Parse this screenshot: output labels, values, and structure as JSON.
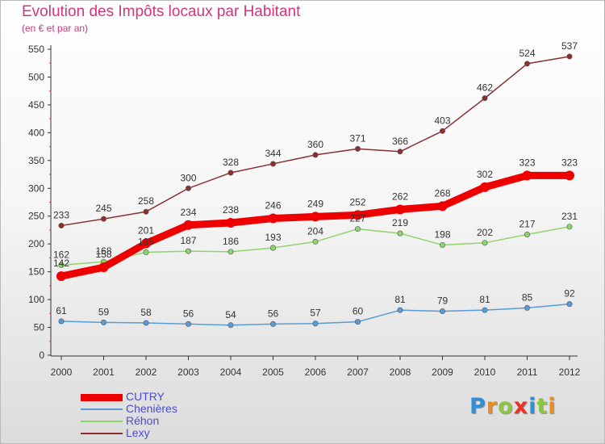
{
  "chart_data": {
    "type": "line",
    "title": "Evolution des Impôts locaux par Habitant",
    "subtitle": "(en € et par an)",
    "x": [
      "2000",
      "2001",
      "2002",
      "2003",
      "2004",
      "2005",
      "2006",
      "2007",
      "2008",
      "2009",
      "2010",
      "2011",
      "2012"
    ],
    "y_ticks": [
      0,
      50,
      100,
      150,
      200,
      250,
      300,
      350,
      400,
      450,
      500,
      550
    ],
    "ylim": [
      0,
      550
    ],
    "grid": false,
    "legend_position": "bottom-left",
    "series": [
      {
        "name": "CUTRY",
        "color": "#ee0000",
        "values": [
          142,
          158,
          201,
          234,
          238,
          246,
          249,
          252,
          262,
          268,
          302,
          323,
          323
        ]
      },
      {
        "name": "Chenières",
        "color": "#5b9bd5",
        "values": [
          61,
          59,
          58,
          56,
          54,
          56,
          57,
          60,
          81,
          79,
          81,
          85,
          92
        ]
      },
      {
        "name": "Réhon",
        "color": "#8fd46a",
        "values": [
          162,
          168,
          185,
          187,
          186,
          193,
          204,
          227,
          219,
          198,
          202,
          217,
          231
        ]
      },
      {
        "name": "Lexy",
        "color": "#8b2f2f",
        "values": [
          233,
          245,
          258,
          300,
          328,
          344,
          360,
          371,
          366,
          403,
          462,
          524,
          537
        ]
      }
    ]
  },
  "brand": {
    "letters": [
      "P",
      "r",
      "o",
      "x",
      "i",
      "t",
      "i"
    ],
    "colors": [
      "#2f8fd8",
      "#f08a1c",
      "#8cc63f",
      "#e6332a",
      "#2f8fd8",
      "#8cc63f",
      "#f08a1c"
    ]
  }
}
